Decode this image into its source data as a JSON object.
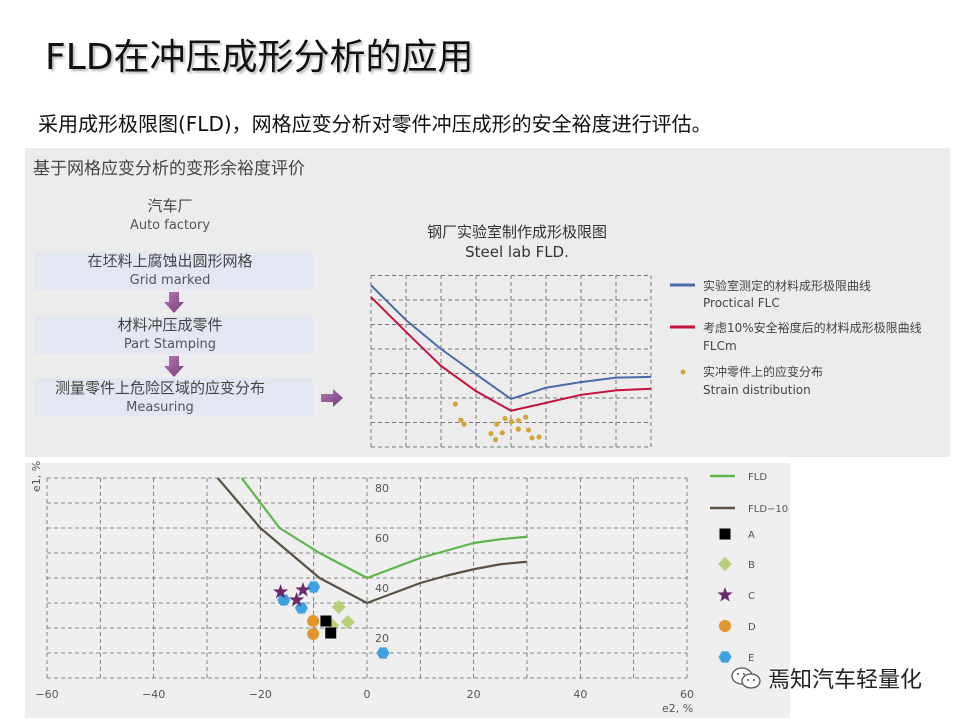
{
  "slide": {
    "title": "FLD在冲压成形分析的应用",
    "subtitle": "采用成形极限图(FLD)，网格应变分析对零件冲压成形的安全裕度进行评估。"
  },
  "top_panel": {
    "heading": "基于网格应变分析的变形余裕度评价",
    "flow": [
      {
        "cn": "汽车厂",
        "en": "Auto factory"
      },
      {
        "cn": "在坯料上腐蚀出圆形网格",
        "en": "Grid marked"
      },
      {
        "cn": "材料冲压成零件",
        "en": "Part Stamping"
      },
      {
        "cn": "测量零件上危险区域的应变分布",
        "en": "Measuring"
      }
    ],
    "arrow_color": "#8b4a8c"
  },
  "watermark": {
    "text": "焉知汽车轻量化",
    "icon": "wechat-icon"
  },
  "chart_data": [
    {
      "type": "line",
      "title_cn": "钢厂实验室制作成形极限图",
      "title_en": "Steel lab FLD.",
      "grid": true,
      "axis_ticks": "none",
      "xlim": [
        0,
        8
      ],
      "ylim": [
        0,
        7
      ],
      "legend_placement": "right",
      "series": [
        {
          "name_cn": "实验室测定的材料成形极限曲线",
          "name_en": "Proctical  FLC",
          "color": "#4a6aa6",
          "x": [
            0,
            1,
            2,
            3,
            4,
            5,
            6,
            7,
            8
          ],
          "y": [
            6.6,
            5.18,
            4.0,
            2.97,
            1.96,
            2.42,
            2.65,
            2.83,
            2.86
          ]
        },
        {
          "name_cn": "考虑10%安全裕度后的材料成形极限曲线",
          "name_en": "FLCm",
          "color": "#c3123b",
          "x": [
            0,
            1,
            2,
            3,
            4,
            5,
            6,
            7,
            8
          ],
          "y": [
            6.12,
            4.7,
            3.31,
            2.28,
            1.48,
            1.8,
            2.13,
            2.31,
            2.38
          ]
        },
        {
          "name_cn": "实冲零件上的应变分布",
          "name_en": "Strain  distribution",
          "color": "#d3a43c",
          "type": "scatter",
          "x": [
            2.41,
            2.57,
            2.66,
            3.43,
            3.56,
            3.75,
            3.59,
            3.83,
            4.01,
            4.21,
            4.42,
            4.21,
            4.5,
            4.6,
            4.8
          ],
          "y": [
            1.75,
            1.1,
            0.93,
            0.55,
            0.3,
            0.58,
            0.93,
            1.16,
            1.04,
            1.08,
            1.22,
            0.73,
            0.69,
            0.37,
            0.41
          ]
        }
      ]
    },
    {
      "type": "line",
      "xlabel": "e2, %",
      "ylabel": "e1, %",
      "xlim": [
        -60,
        60
      ],
      "ylim": [
        0,
        80
      ],
      "xticks": [
        "−60",
        "−40",
        "−20",
        "0",
        "20",
        "40",
        "60"
      ],
      "xtick_values": [
        -60,
        -40,
        -20,
        0,
        20,
        40,
        60
      ],
      "yticks": [
        "80",
        "60",
        "40",
        "20"
      ],
      "ytick_values": [
        80,
        60,
        40,
        20
      ],
      "grid": true,
      "legend_placement": "right",
      "series": [
        {
          "name": "FLD",
          "color": "#5db64b",
          "marker": "line",
          "x": [
            -23.5,
            -16.4,
            -8.9,
            0,
            5,
            10,
            15,
            20,
            25,
            30
          ],
          "y": [
            80,
            60,
            50,
            40,
            44,
            48,
            51,
            54,
            55.5,
            56.5
          ]
        },
        {
          "name": "FLD−10",
          "color": "#5a5142",
          "marker": "line",
          "x": [
            -28,
            -20,
            -8.9,
            0,
            5,
            10,
            15,
            20,
            25,
            30
          ],
          "y": [
            80,
            60,
            40,
            30,
            34,
            38,
            41,
            43.5,
            45.5,
            46.5
          ]
        },
        {
          "name": "A",
          "color": "#000000",
          "marker": "square",
          "x": [
            -7.7,
            -6.8
          ],
          "y": [
            22.8,
            18
          ]
        },
        {
          "name": "B",
          "color": "#b8d07a",
          "marker": "diamond",
          "x": [
            -5.3,
            -3.6,
            -6.5
          ],
          "y": [
            28.4,
            22.4,
            21
          ]
        },
        {
          "name": "C",
          "color": "#6a2a6c",
          "marker": "star",
          "x": [
            -16.2,
            -12,
            -13.2
          ],
          "y": [
            34.4,
            35.2,
            31.2
          ]
        },
        {
          "name": "D",
          "color": "#e0962b",
          "marker": "circle",
          "x": [
            -10.1,
            -10.1
          ],
          "y": [
            22.8,
            17.6
          ]
        },
        {
          "name": "E",
          "color": "#3fa1e2",
          "marker": "hexagon",
          "x": [
            -10,
            -15.6,
            -12.3,
            3
          ],
          "y": [
            36.4,
            31.2,
            28,
            10
          ]
        }
      ]
    }
  ]
}
